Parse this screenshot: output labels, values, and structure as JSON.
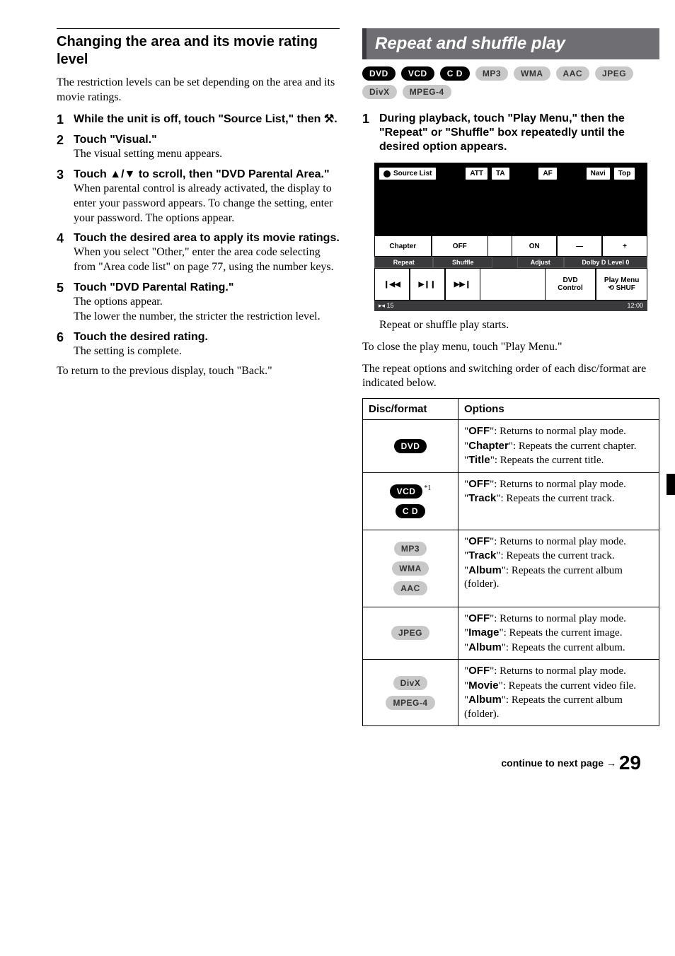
{
  "left": {
    "heading": "Changing the area and its movie rating level",
    "intro": "The restriction levels can be set depending on the area and its movie ratings.",
    "steps": [
      {
        "num": "1",
        "title_before": "While the unit is off, touch \"Source List,\" then ",
        "gear": "⚒",
        "title_after": "."
      },
      {
        "num": "2",
        "title": "Touch \"Visual.\"",
        "desc": "The visual setting menu appears."
      },
      {
        "num": "3",
        "title": "Touch ▲/▼ to scroll, then \"DVD Parental Area.\"",
        "desc": "When parental control is already activated, the display to enter your password appears. To change the setting, enter your password. The options appear."
      },
      {
        "num": "4",
        "title": "Touch the desired area to apply its movie ratings.",
        "desc": "When you select \"Other,\" enter the area code selecting from \"Area code list\" on page 77, using the number keys."
      },
      {
        "num": "5",
        "title": "Touch \"DVD Parental Rating.\"",
        "desc": "The options appear.\nThe lower the number, the stricter the restriction level."
      },
      {
        "num": "6",
        "title": "Touch the desired rating.",
        "desc": "The setting is complete."
      }
    ],
    "outro": "To return to the previous display, touch \"Back.\""
  },
  "right": {
    "major_heading": "Repeat and shuffle play",
    "top_badges": [
      {
        "label": "DVD",
        "style": "dark"
      },
      {
        "label": "VCD",
        "style": "dark"
      },
      {
        "label": "C D",
        "style": "dark"
      },
      {
        "label": "MP3",
        "style": "light"
      },
      {
        "label": "WMA",
        "style": "light"
      },
      {
        "label": "AAC",
        "style": "light"
      },
      {
        "label": "JPEG",
        "style": "light"
      },
      {
        "label": "DivX",
        "style": "light"
      },
      {
        "label": "MPEG-4",
        "style": "light"
      }
    ],
    "step1": {
      "num": "1",
      "title": "During playback, touch \"Play Menu,\" then the \"Repeat\" or \"Shuffle\" box repeatedly until the desired option appears."
    },
    "player": {
      "top": [
        "Source List",
        "ATT",
        "TA",
        "AF",
        "Navi",
        "Top"
      ],
      "mid_top": [
        "Chapter",
        "OFF",
        "ON",
        "—",
        "+"
      ],
      "mid_sub": [
        "Repeat",
        "Shuffle",
        "Adjust",
        "Dolby D Level  0"
      ],
      "bottom_left": [
        "❙◀◀",
        "▶❙❙",
        "▶▶❙"
      ],
      "bottom_right": [
        {
          "l1": "DVD",
          "l2": "Control"
        },
        {
          "l1": "Play Menu",
          "l2": "⟲ SHUF"
        }
      ],
      "footer_left": "▸◂ 15",
      "footer_right": "12:00"
    },
    "caption": "Repeat or shuffle play starts.",
    "para1": "To close the play menu, touch \"Play Menu.\"",
    "para2": "The repeat options and switching order of each disc/format are indicated below.",
    "table": {
      "headers": [
        "Disc/format",
        "Options"
      ],
      "rows": [
        {
          "badges": [
            {
              "label": "DVD",
              "style": "dark"
            }
          ],
          "options": [
            {
              "key": "OFF",
              "text": ": Returns to normal play mode."
            },
            {
              "key": "Chapter",
              "text": ": Repeats the current chapter."
            },
            {
              "key": "Title",
              "text": ": Repeats the current title."
            }
          ]
        },
        {
          "badges": [
            {
              "label": "VCD",
              "style": "dark",
              "sup": "*1"
            },
            {
              "label": "C D",
              "style": "dark"
            }
          ],
          "options": [
            {
              "key": "OFF",
              "text": ": Returns to normal play mode."
            },
            {
              "key": "Track",
              "text": ": Repeats the current track."
            }
          ]
        },
        {
          "badges": [
            {
              "label": "MP3",
              "style": "light"
            },
            {
              "label": "WMA",
              "style": "light"
            },
            {
              "label": "AAC",
              "style": "light"
            }
          ],
          "options": [
            {
              "key": "OFF",
              "text": ": Returns to normal play mode."
            },
            {
              "key": "Track",
              "text": ": Repeats the current track."
            },
            {
              "key": "Album",
              "text": ": Repeats the current album (folder)."
            }
          ]
        },
        {
          "badges": [
            {
              "label": "JPEG",
              "style": "light"
            }
          ],
          "options": [
            {
              "key": "OFF",
              "text": ": Returns to normal play mode."
            },
            {
              "key": "Image",
              "text": ": Repeats the current image."
            },
            {
              "key": "Album",
              "text": ": Repeats the current album."
            }
          ]
        },
        {
          "badges": [
            {
              "label": "DivX",
              "style": "light"
            },
            {
              "label": "MPEG-4",
              "style": "light"
            }
          ],
          "options": [
            {
              "key": "OFF",
              "text": ": Returns to normal play mode."
            },
            {
              "key": "Movie",
              "text": ": Repeats the current video file."
            },
            {
              "key": "Album",
              "text": ": Repeats the current album (folder)."
            }
          ]
        }
      ]
    }
  },
  "footer": {
    "continue": "continue to next page",
    "arrow": "→",
    "page": "29"
  }
}
